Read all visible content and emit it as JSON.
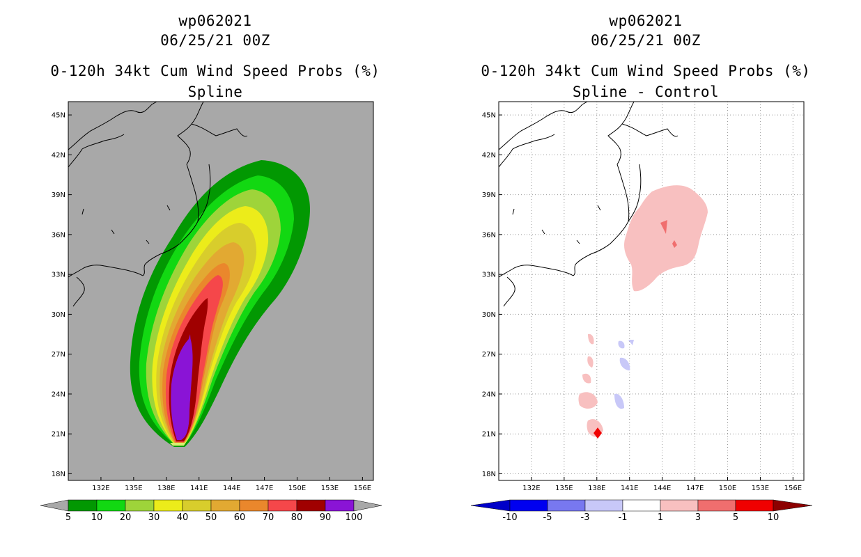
{
  "chart_data": [
    {
      "type": "contour_map",
      "storm_id": "wp062021",
      "date": "06/25/21 00Z",
      "title": "0-120h 34kt Cum Wind Speed Probs (%)",
      "subtitle": "Spline",
      "lon_range": [
        129,
        157
      ],
      "lat_range": [
        17.5,
        46
      ],
      "x_ticks": [
        "132E",
        "135E",
        "138E",
        "141E",
        "144E",
        "147E",
        "150E",
        "153E",
        "156E"
      ],
      "y_ticks": [
        "18N",
        "21N",
        "24N",
        "27N",
        "30N",
        "33N",
        "36N",
        "39N",
        "42N",
        "45N"
      ],
      "colorbar": {
        "labels": [
          "5",
          "10",
          "20",
          "30",
          "40",
          "50",
          "60",
          "70",
          "80",
          "90",
          "100"
        ],
        "colors": [
          "#029802",
          "#12d812",
          "#9ed43a",
          "#ecec1a",
          "#d8cd2c",
          "#e2a932",
          "#ea872c",
          "#f5474a",
          "#a00000",
          "#8a14d6"
        ]
      },
      "max_core_location": "approx 140E 23N"
    },
    {
      "type": "contour_map",
      "storm_id": "wp062021",
      "date": "06/25/21 00Z",
      "title": "0-120h 34kt Cum Wind Speed Probs (%)",
      "subtitle": "Spline - Control",
      "lon_range": [
        129,
        157
      ],
      "lat_range": [
        17.5,
        46
      ],
      "x_ticks": [
        "132E",
        "135E",
        "138E",
        "141E",
        "144E",
        "147E",
        "150E",
        "153E",
        "156E"
      ],
      "y_ticks": [
        "18N",
        "21N",
        "24N",
        "27N",
        "30N",
        "33N",
        "36N",
        "39N",
        "42N",
        "45N"
      ],
      "colorbar": {
        "labels": [
          "-10",
          "-5",
          "-3",
          "-1",
          "1",
          "3",
          "5",
          "10"
        ],
        "colors": [
          "#0000c8",
          "#0000f0",
          "#7878f0",
          "#c8c8f8",
          "#ffffff",
          "#f8c0c0",
          "#f06e6e",
          "#f00000",
          "#8c0000"
        ]
      }
    }
  ]
}
